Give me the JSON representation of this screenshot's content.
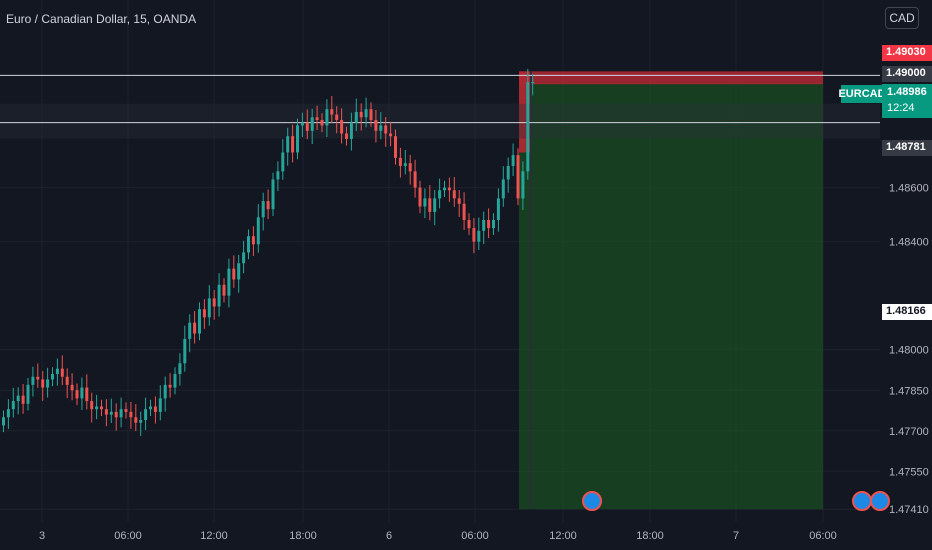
{
  "header": {
    "title": "Euro / Canadian Dollar, 15, OANDA",
    "currency_button": "CAD"
  },
  "price_tags": {
    "target": "1.49030",
    "stop": "1.49000",
    "last": "1.48986",
    "countdown": "12:24",
    "line_upper": "1.48781",
    "line_lower": "1.48166",
    "symbol": "EURCAD"
  },
  "colors": {
    "background": "#131722",
    "up": "#26a69a",
    "down": "#ef5350",
    "target_zone": "#1b5e20",
    "stop_zone": "#b22833",
    "last_price": "#089981"
  },
  "chart_data": {
    "type": "candlestick",
    "symbol": "EURCAD",
    "interval": "15",
    "ylim": [
      1.4737,
      1.4922
    ],
    "y_ticks": [
      "1.48600",
      "1.48400",
      "1.48000",
      "1.47850",
      "1.47700",
      "1.47550",
      "1.47410"
    ],
    "x_ticks": [
      "3",
      "06:00",
      "12:00",
      "18:00",
      "6",
      "06:00",
      "12:00",
      "18:00",
      "7",
      "06:00"
    ],
    "horizontal_lines": [
      1.48781,
      1.48166
    ],
    "position": {
      "type": "short",
      "entry": 1.48986,
      "stop": 1.4903,
      "target": 1.4741
    },
    "closes": [
      1.4775,
      1.4778,
      1.4781,
      1.4783,
      1.478,
      1.4787,
      1.479,
      1.4789,
      1.4786,
      1.4789,
      1.4791,
      1.4793,
      1.479,
      1.4787,
      1.4785,
      1.4782,
      1.4786,
      1.4781,
      1.4778,
      1.4779,
      1.4778,
      1.4776,
      1.4777,
      1.4775,
      1.4778,
      1.4777,
      1.4775,
      1.4773,
      1.4774,
      1.4778,
      1.4779,
      1.4777,
      1.4782,
      1.4787,
      1.4786,
      1.4791,
      1.4795,
      1.4804,
      1.481,
      1.4806,
      1.4815,
      1.4812,
      1.4819,
      1.4816,
      1.4824,
      1.482,
      1.483,
      1.4826,
      1.4832,
      1.4836,
      1.4842,
      1.4839,
      1.4849,
      1.4855,
      1.4852,
      1.4863,
      1.4866,
      1.4873,
      1.4879,
      1.4873,
      1.4883,
      1.4884,
      1.4881,
      1.4886,
      1.4885,
      1.4883,
      1.4889,
      1.4887,
      1.4885,
      1.488,
      1.4878,
      1.4884,
      1.4888,
      1.4886,
      1.4889,
      1.4885,
      1.4881,
      1.4883,
      1.488,
      1.4879,
      1.4871,
      1.4868,
      1.4869,
      1.4866,
      1.486,
      1.4853,
      1.4856,
      1.4851,
      1.4856,
      1.4859,
      1.486,
      1.4859,
      1.4856,
      1.4854,
      1.4848,
      1.4845,
      1.484,
      1.4844,
      1.4848,
      1.4845,
      1.4848,
      1.4856,
      1.4863,
      1.4868,
      1.4872,
      1.4856,
      1.4866,
      1.4899,
      1.4899
    ]
  }
}
